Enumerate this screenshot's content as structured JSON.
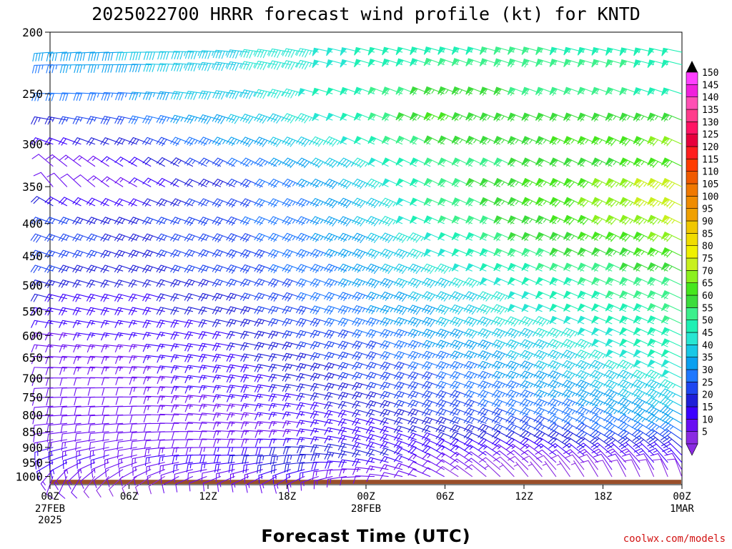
{
  "chart_data": {
    "type": "wind_barbs",
    "title": "2025022700 HRRR forecast wind profile (kt) for KNTD",
    "xlabel": "Forecast Time (UTC)",
    "ylabel": "",
    "credit": "coolwx.com/models",
    "y_scale": "log-pressure",
    "ylim": [
      1030,
      200
    ],
    "y_ticks": [
      "200",
      "250",
      "300",
      "350",
      "400",
      "450",
      "500",
      "550",
      "600",
      "650",
      "700",
      "750",
      "800",
      "850",
      "900",
      "950",
      "1000"
    ],
    "x_tick_labels": [
      "00Z",
      "06Z",
      "12Z",
      "18Z",
      "00Z",
      "06Z",
      "12Z",
      "18Z",
      "00Z"
    ],
    "x_tick_hours": [
      0,
      6,
      12,
      18,
      24,
      30,
      36,
      42,
      48
    ],
    "x_date_labels": [
      {
        "hour": 0,
        "lines": [
          "27FEB",
          "2025"
        ]
      },
      {
        "hour": 24,
        "lines": [
          "28FEB"
        ]
      },
      {
        "hour": 48,
        "lines": [
          "1MAR"
        ]
      }
    ],
    "colorbar": {
      "levels": [
        5,
        10,
        15,
        20,
        25,
        30,
        35,
        40,
        45,
        50,
        55,
        60,
        65,
        70,
        75,
        80,
        85,
        90,
        95,
        100,
        105,
        110,
        115,
        120,
        125,
        130,
        135,
        140,
        145,
        150
      ],
      "colors": [
        "#8a2be2",
        "#6a0ef2",
        "#3b00ff",
        "#1e1ed8",
        "#1e46f0",
        "#1e78ff",
        "#0aa0f0",
        "#18c8e6",
        "#28e6d2",
        "#1ef0b4",
        "#3cf08c",
        "#3cdc3c",
        "#46e61e",
        "#8cf01e",
        "#c8f01e",
        "#f0f000",
        "#f0dc00",
        "#f0c800",
        "#f0a000",
        "#f08c00",
        "#f07800",
        "#f05a00",
        "#ff3c00",
        "#ff1e1e",
        "#e6003c",
        "#ff1464",
        "#ff3c8c",
        "#ff50b4",
        "#f020dc",
        "#ff40ff"
      ]
    },
    "terrain_color": "#9a4f2a",
    "terrain_top_hpa": 1012,
    "levels_hpa": [
      1000,
      975,
      950,
      925,
      900,
      875,
      850,
      825,
      800,
      775,
      750,
      725,
      700,
      675,
      650,
      625,
      600,
      575,
      550,
      525,
      500,
      475,
      450,
      425,
      400,
      375,
      350,
      325,
      300,
      275,
      250,
      225,
      215
    ],
    "speed_profile_kt": [
      [
        12,
        8,
        12,
        14,
        12,
        10,
        6,
        8,
        10
      ],
      [
        14,
        10,
        12,
        16,
        14,
        12,
        8,
        10,
        12
      ],
      [
        16,
        12,
        16,
        22,
        18,
        14,
        10,
        14,
        16
      ],
      [
        18,
        14,
        18,
        24,
        22,
        18,
        14,
        18,
        20
      ],
      [
        16,
        12,
        14,
        20,
        20,
        18,
        18,
        22,
        24
      ],
      [
        14,
        10,
        12,
        16,
        18,
        20,
        22,
        26,
        30
      ],
      [
        12,
        10,
        12,
        14,
        18,
        22,
        26,
        30,
        34
      ],
      [
        10,
        10,
        12,
        14,
        18,
        24,
        28,
        32,
        38
      ],
      [
        10,
        10,
        12,
        16,
        20,
        26,
        30,
        34,
        40
      ],
      [
        10,
        12,
        14,
        16,
        22,
        28,
        32,
        36,
        42
      ],
      [
        10,
        12,
        14,
        18,
        24,
        28,
        34,
        38,
        44
      ],
      [
        10,
        12,
        16,
        20,
        24,
        30,
        34,
        40,
        46
      ],
      [
        10,
        12,
        16,
        20,
        26,
        30,
        36,
        42,
        48
      ],
      [
        12,
        14,
        16,
        22,
        26,
        32,
        38,
        44,
        50
      ],
      [
        12,
        14,
        18,
        22,
        28,
        34,
        40,
        46,
        52
      ],
      [
        14,
        14,
        18,
        24,
        28,
        36,
        42,
        48,
        54
      ],
      [
        14,
        16,
        18,
        24,
        30,
        38,
        44,
        48,
        54
      ],
      [
        16,
        16,
        20,
        26,
        32,
        40,
        46,
        50,
        56
      ],
      [
        18,
        18,
        22,
        26,
        34,
        40,
        48,
        52,
        56
      ],
      [
        20,
        18,
        22,
        28,
        34,
        42,
        48,
        54,
        58
      ],
      [
        24,
        20,
        24,
        28,
        36,
        44,
        50,
        56,
        60
      ],
      [
        26,
        22,
        26,
        30,
        36,
        46,
        54,
        58,
        64
      ],
      [
        28,
        24,
        26,
        30,
        38,
        48,
        58,
        62,
        68
      ],
      [
        28,
        24,
        26,
        32,
        38,
        50,
        60,
        66,
        72
      ],
      [
        26,
        24,
        28,
        32,
        40,
        54,
        62,
        70,
        76
      ],
      [
        20,
        18,
        26,
        32,
        40,
        56,
        64,
        72,
        78
      ],
      [
        10,
        14,
        22,
        32,
        42,
        58,
        64,
        70,
        80
      ],
      [
        12,
        16,
        26,
        36,
        46,
        56,
        60,
        62,
        70
      ],
      [
        18,
        22,
        34,
        40,
        50,
        62,
        64,
        66,
        72
      ],
      [
        24,
        28,
        38,
        44,
        52,
        66,
        62,
        62,
        64
      ],
      [
        30,
        34,
        42,
        46,
        54,
        64,
        60,
        56,
        54
      ],
      [
        34,
        38,
        44,
        46,
        50,
        56,
        58,
        56,
        54
      ],
      [
        38,
        40,
        44,
        46,
        50,
        54,
        56,
        54,
        52
      ]
    ],
    "direction_profile_deg": [
      [
        200,
        230,
        250,
        240,
        270,
        300,
        320,
        330,
        340
      ],
      [
        220,
        240,
        260,
        250,
        275,
        300,
        315,
        325,
        330
      ],
      [
        240,
        250,
        265,
        260,
        280,
        300,
        310,
        315,
        320
      ],
      [
        250,
        255,
        270,
        265,
        285,
        300,
        305,
        310,
        315
      ],
      [
        255,
        260,
        270,
        270,
        285,
        295,
        300,
        305,
        310
      ],
      [
        260,
        262,
        272,
        272,
        285,
        292,
        298,
        300,
        305
      ],
      [
        262,
        265,
        272,
        275,
        285,
        290,
        295,
        298,
        302
      ],
      [
        264,
        266,
        274,
        276,
        286,
        290,
        294,
        296,
        300
      ],
      [
        266,
        268,
        275,
        278,
        286,
        290,
        292,
        295,
        298
      ],
      [
        266,
        268,
        276,
        278,
        286,
        290,
        292,
        294,
        298
      ],
      [
        268,
        270,
        276,
        280,
        286,
        290,
        292,
        294,
        296
      ],
      [
        268,
        270,
        276,
        280,
        286,
        290,
        292,
        294,
        296
      ],
      [
        270,
        272,
        278,
        282,
        288,
        290,
        292,
        294,
        296
      ],
      [
        272,
        274,
        278,
        282,
        288,
        290,
        292,
        294,
        296
      ],
      [
        274,
        274,
        280,
        282,
        288,
        290,
        292,
        294,
        295
      ],
      [
        276,
        276,
        280,
        284,
        288,
        290,
        292,
        294,
        295
      ],
      [
        278,
        278,
        282,
        284,
        288,
        290,
        292,
        294,
        295
      ],
      [
        280,
        280,
        282,
        286,
        288,
        290,
        292,
        294,
        295
      ],
      [
        282,
        282,
        284,
        286,
        288,
        290,
        292,
        294,
        295
      ],
      [
        284,
        284,
        286,
        288,
        290,
        292,
        292,
        294,
        295
      ],
      [
        286,
        286,
        288,
        290,
        290,
        292,
        294,
        294,
        295
      ],
      [
        288,
        288,
        288,
        290,
        292,
        292,
        294,
        295,
        296
      ],
      [
        288,
        288,
        290,
        290,
        292,
        292,
        294,
        296,
        296
      ],
      [
        290,
        290,
        290,
        292,
        292,
        294,
        294,
        296,
        296
      ],
      [
        290,
        290,
        290,
        292,
        292,
        294,
        294,
        296,
        296
      ],
      [
        300,
        292,
        292,
        292,
        294,
        294,
        296,
        296,
        296
      ],
      [
        320,
        300,
        294,
        294,
        294,
        296,
        296,
        296,
        296
      ],
      [
        310,
        300,
        296,
        296,
        296,
        296,
        296,
        296,
        296
      ],
      [
        290,
        290,
        292,
        292,
        294,
        296,
        294,
        294,
        294
      ],
      [
        280,
        282,
        286,
        290,
        292,
        294,
        292,
        292,
        292
      ],
      [
        272,
        274,
        278,
        284,
        290,
        292,
        290,
        290,
        288
      ],
      [
        268,
        270,
        276,
        282,
        286,
        290,
        288,
        286,
        284
      ],
      [
        266,
        268,
        274,
        280,
        284,
        286,
        286,
        284,
        282
      ]
    ]
  }
}
